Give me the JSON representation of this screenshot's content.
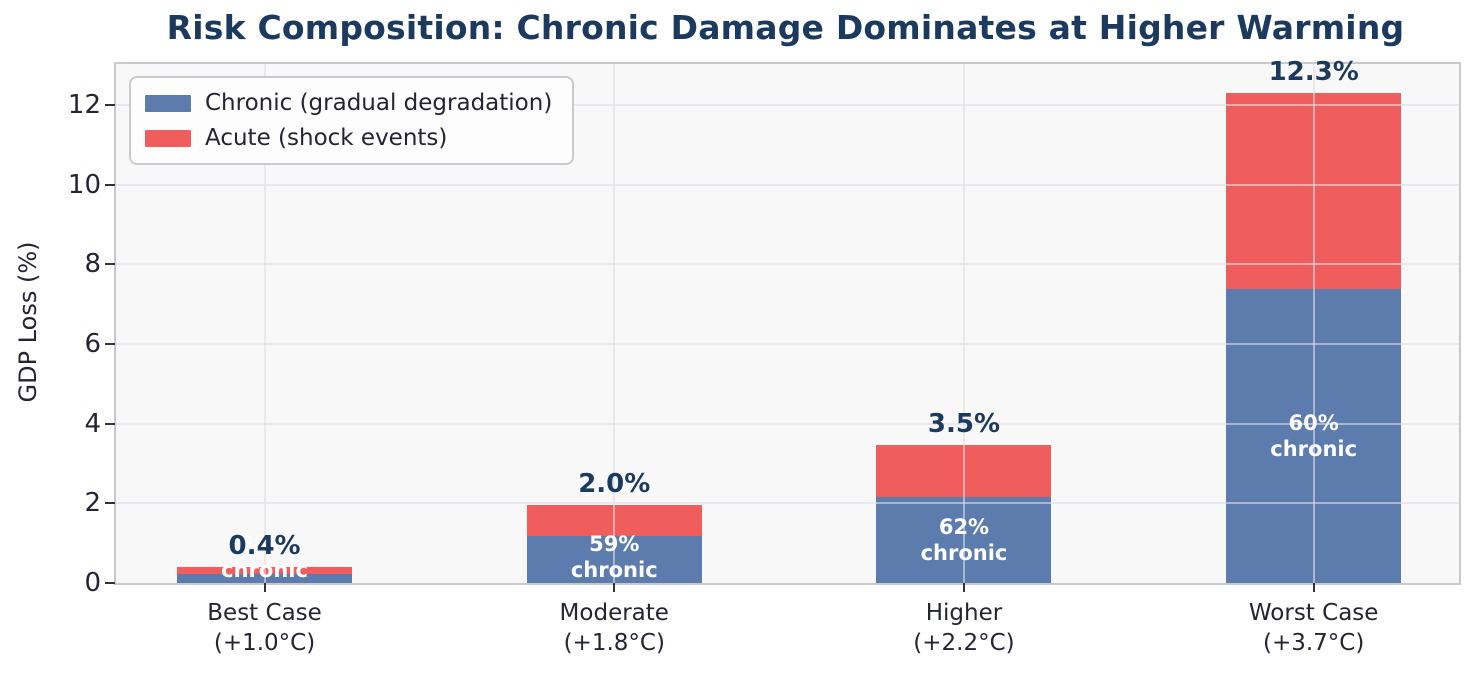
{
  "chart_data": {
    "type": "bar",
    "stacked": true,
    "title": "Risk Composition: Chronic Damage Dominates at Higher Warming",
    "ylabel": "GDP Loss (%)",
    "categories": [
      {
        "line1": "Best Case",
        "line2": "(+1.0°C)"
      },
      {
        "line1": "Moderate",
        "line2": "(+1.8°C)"
      },
      {
        "line1": "Higher",
        "line2": "(+2.2°C)"
      },
      {
        "line1": "Worst Case",
        "line2": "(+3.7°C)"
      }
    ],
    "series": [
      {
        "name": "Chronic (gradual degradation)",
        "color": "#5b7cad",
        "values": [
          0.23,
          1.17,
          2.15,
          7.38
        ]
      },
      {
        "name": "Acute (shock events)",
        "color": "#f05d5d",
        "values": [
          0.17,
          0.8,
          1.32,
          4.92
        ]
      }
    ],
    "total_labels": [
      "0.4%",
      "2.0%",
      "3.5%",
      "12.3%"
    ],
    "segment_labels": [
      {
        "pct": "58%",
        "word": "chronic"
      },
      {
        "pct": "59%",
        "word": "chronic"
      },
      {
        "pct": "62%",
        "word": "chronic"
      },
      {
        "pct": "60%",
        "word": "chronic"
      }
    ],
    "yticks": [
      0,
      2,
      4,
      6,
      8,
      10,
      12
    ],
    "ylim": [
      0,
      13.03
    ],
    "grid": true,
    "legend_position": "upper-left"
  },
  "style": {
    "title_color": "#1b3a5e",
    "total_label_color": "#1b3a5e",
    "tick_label_color": "#242433",
    "plot_background": "#f8f8f8",
    "chronic_color": "#5b7cad",
    "acute_color": "#f05d5d"
  }
}
